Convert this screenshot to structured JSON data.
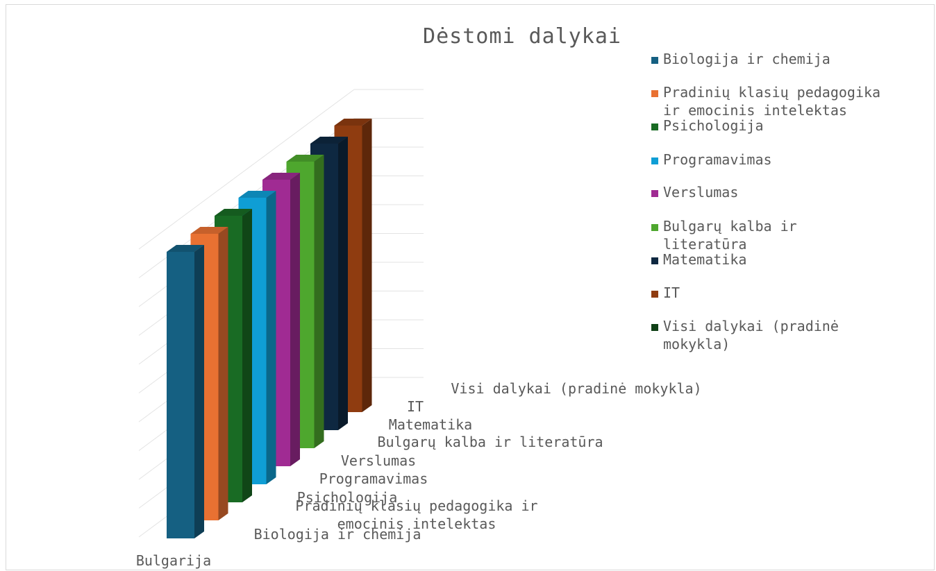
{
  "chart_data": {
    "type": "bar",
    "title": "Dėstomi dalykai",
    "categories": [
      "Bulgarija"
    ],
    "series": [
      {
        "name": "Biologija ir chemija",
        "values": [
          1
        ],
        "color": "#156082",
        "label_lines": [
          "Biologija ir chemija"
        ]
      },
      {
        "name": "Pradinių klasių pedagogika ir emocinis intelektas",
        "values": [
          1
        ],
        "color": "#E97132",
        "label_lines": [
          "Pradinių klasių pedagogika ir",
          "emocinis intelektas"
        ],
        "legend_lines": [
          "Pradinių klasių pedagogika",
          "ir emocinis intelektas"
        ]
      },
      {
        "name": "Psichologija",
        "values": [
          1
        ],
        "color": "#196B24",
        "label_lines": [
          "Psichologija"
        ]
      },
      {
        "name": "Programavimas",
        "values": [
          1
        ],
        "color": "#0F9ED5",
        "label_lines": [
          "Programavimas"
        ]
      },
      {
        "name": "Verslumas",
        "values": [
          1
        ],
        "color": "#A02B93",
        "label_lines": [
          "Verslumas"
        ]
      },
      {
        "name": "Bulgarų kalba ir literatūra",
        "values": [
          1
        ],
        "color": "#4EA72E",
        "label_lines": [
          "Bulgarų kalba ir literatūra"
        ],
        "legend_lines": [
          "Bulgarų kalba ir",
          "literatūra"
        ]
      },
      {
        "name": "Matematika",
        "values": [
          1
        ],
        "color": "#0E2841",
        "label_lines": [
          "Matematika"
        ]
      },
      {
        "name": "IT",
        "values": [
          1
        ],
        "color": "#8F3C10",
        "label_lines": [
          "IT"
        ]
      },
      {
        "name": "Visi dalykai (pradinė mokykla)",
        "values": [
          0
        ],
        "color": "#0F4016",
        "label_lines": [
          "Visi dalykai (pradinė mokykla)"
        ],
        "legend_lines": [
          "Visi dalykai (pradinė",
          "mokykla)"
        ]
      }
    ],
    "ylim": [
      0,
      1
    ],
    "grid": true,
    "legend_position": "right"
  }
}
